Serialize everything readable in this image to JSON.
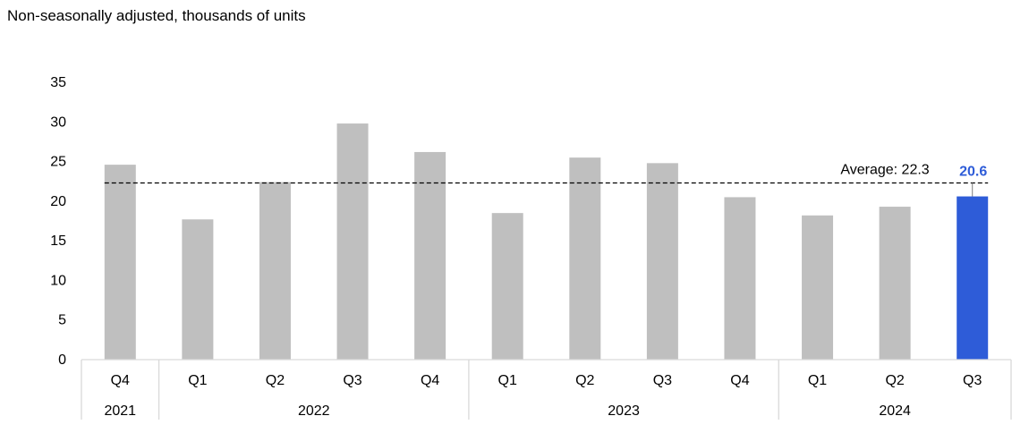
{
  "chart_data": {
    "type": "bar",
    "subtitle": "Non-seasonally adjusted, thousands of units",
    "categories": [
      "Q4",
      "Q1",
      "Q2",
      "Q3",
      "Q4",
      "Q1",
      "Q2",
      "Q3",
      "Q4",
      "Q1",
      "Q2",
      "Q3"
    ],
    "years": [
      {
        "label": "2021",
        "count": 1
      },
      {
        "label": "2022",
        "count": 4
      },
      {
        "label": "2023",
        "count": 4
      },
      {
        "label": "2024",
        "count": 3
      }
    ],
    "values": [
      24.6,
      17.7,
      22.4,
      29.8,
      26.2,
      18.5,
      25.5,
      24.8,
      20.5,
      18.2,
      19.3,
      20.6
    ],
    "highlight_index": 11,
    "highlight_label": "20.6",
    "average": {
      "value": 22.3,
      "label": "Average:  22.3"
    },
    "ylim": [
      0,
      35
    ],
    "yticks": [
      0,
      5,
      10,
      15,
      20,
      25,
      30,
      35
    ],
    "colors": {
      "bar": "#bfbfbf",
      "highlight": "#2e5cd8",
      "axis": "#d9d9d9",
      "average_line": "#000000"
    }
  }
}
